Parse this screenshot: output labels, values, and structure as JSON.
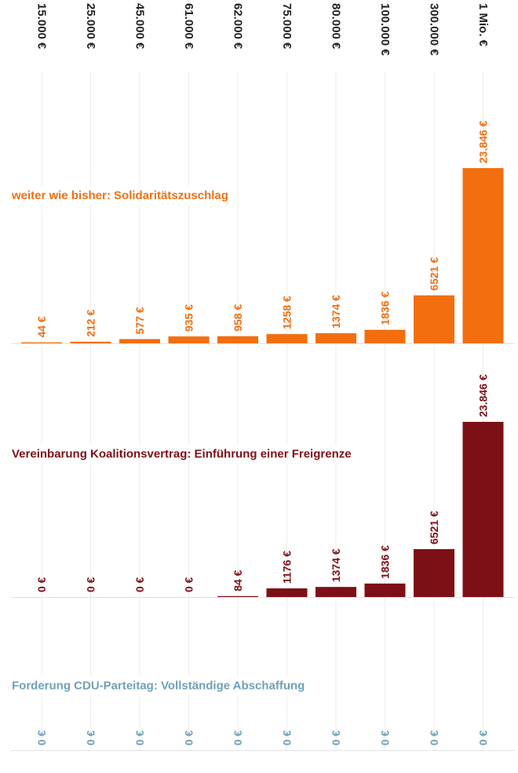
{
  "chart_data": {
    "type": "bar",
    "categories": [
      "15.000 €",
      "25.000 €",
      "45.000 €",
      "61.000 €",
      "62.000 €",
      "75.000 €",
      "80.000 €",
      "100.000 €",
      "300.000 €",
      "1 Mio. €"
    ],
    "series": [
      {
        "name": "weiter wie bisher: Solidaritätszuschlag",
        "color": "#f26e0f",
        "values": [
          44,
          212,
          577,
          935,
          958,
          1258,
          1374,
          1836,
          6521,
          23846
        ],
        "labels": [
          "44 €",
          "212 €",
          "577 €",
          "935 €",
          "958 €",
          "1258 €",
          "1374 €",
          "1836 €",
          "6521 €",
          "23.846 €"
        ]
      },
      {
        "name": "Vereinbarung Koalitionsvertrag: Einführung einer Freigrenze",
        "color": "#7d1016",
        "values": [
          0,
          0,
          0,
          0,
          84,
          1176,
          1374,
          1836,
          6521,
          23846
        ],
        "labels": [
          "0 €",
          "0 €",
          "0 €",
          "0 €",
          "84 €",
          "1176 €",
          "1374 €",
          "1836 €",
          "6521 €",
          "23.846 €"
        ]
      },
      {
        "name": "Forderung CDU-Parteitag: Vollständige Abschaffung",
        "color": "#6fa1b8",
        "values": [
          0,
          0,
          0,
          0,
          0,
          0,
          0,
          0,
          0,
          0
        ],
        "labels": [
          "0 €",
          "0 €",
          "0 €",
          "0 €",
          "0 €",
          "0 €",
          "0 €",
          "0 €",
          "0 €",
          "0 €"
        ]
      }
    ],
    "ylim": [
      0,
      23846
    ],
    "grid": true,
    "layout": "small-multiples-vertical"
  }
}
